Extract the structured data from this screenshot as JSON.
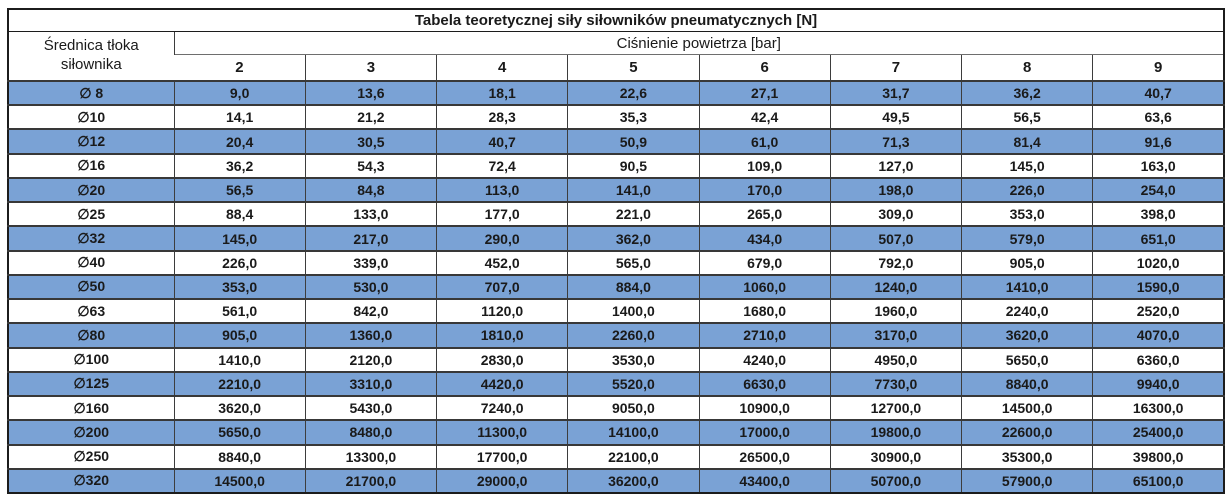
{
  "table": {
    "title": "Tabela teoretycznej siły siłowników pneumatycznych [N]",
    "diameter_header_line1": "Średnica tłoka",
    "diameter_header_line2": "siłownika",
    "pressure_header": "Ciśnienie powietrza [bar]",
    "pressure_columns": [
      "2",
      "3",
      "4",
      "5",
      "6",
      "7",
      "8",
      "9"
    ],
    "rows": [
      {
        "label": "∅ 8",
        "values": [
          "9,0",
          "13,6",
          "18,1",
          "22,6",
          "27,1",
          "31,7",
          "36,2",
          "40,7"
        ]
      },
      {
        "label": "∅10",
        "values": [
          "14,1",
          "21,2",
          "28,3",
          "35,3",
          "42,4",
          "49,5",
          "56,5",
          "63,6"
        ]
      },
      {
        "label": "∅12",
        "values": [
          "20,4",
          "30,5",
          "40,7",
          "50,9",
          "61,0",
          "71,3",
          "81,4",
          "91,6"
        ]
      },
      {
        "label": "∅16",
        "values": [
          "36,2",
          "54,3",
          "72,4",
          "90,5",
          "109,0",
          "127,0",
          "145,0",
          "163,0"
        ]
      },
      {
        "label": "∅20",
        "values": [
          "56,5",
          "84,8",
          "113,0",
          "141,0",
          "170,0",
          "198,0",
          "226,0",
          "254,0"
        ]
      },
      {
        "label": "∅25",
        "values": [
          "88,4",
          "133,0",
          "177,0",
          "221,0",
          "265,0",
          "309,0",
          "353,0",
          "398,0"
        ]
      },
      {
        "label": "∅32",
        "values": [
          "145,0",
          "217,0",
          "290,0",
          "362,0",
          "434,0",
          "507,0",
          "579,0",
          "651,0"
        ]
      },
      {
        "label": "∅40",
        "values": [
          "226,0",
          "339,0",
          "452,0",
          "565,0",
          "679,0",
          "792,0",
          "905,0",
          "1020,0"
        ]
      },
      {
        "label": "∅50",
        "values": [
          "353,0",
          "530,0",
          "707,0",
          "884,0",
          "1060,0",
          "1240,0",
          "1410,0",
          "1590,0"
        ]
      },
      {
        "label": "∅63",
        "values": [
          "561,0",
          "842,0",
          "1120,0",
          "1400,0",
          "1680,0",
          "1960,0",
          "2240,0",
          "2520,0"
        ]
      },
      {
        "label": "∅80",
        "values": [
          "905,0",
          "1360,0",
          "1810,0",
          "2260,0",
          "2710,0",
          "3170,0",
          "3620,0",
          "4070,0"
        ]
      },
      {
        "label": "∅100",
        "values": [
          "1410,0",
          "2120,0",
          "2830,0",
          "3530,0",
          "4240,0",
          "4950,0",
          "5650,0",
          "6360,0"
        ]
      },
      {
        "label": "∅125",
        "values": [
          "2210,0",
          "3310,0",
          "4420,0",
          "5520,0",
          "6630,0",
          "7730,0",
          "8840,0",
          "9940,0"
        ]
      },
      {
        "label": "∅160",
        "values": [
          "3620,0",
          "5430,0",
          "7240,0",
          "9050,0",
          "10900,0",
          "12700,0",
          "14500,0",
          "16300,0"
        ]
      },
      {
        "label": "∅200",
        "values": [
          "5650,0",
          "8480,0",
          "11300,0",
          "14100,0",
          "17000,0",
          "19800,0",
          "22600,0",
          "25400,0"
        ]
      },
      {
        "label": "∅250",
        "values": [
          "8840,0",
          "13300,0",
          "17700,0",
          "22100,0",
          "26500,0",
          "30900,0",
          "35300,0",
          "39800,0"
        ]
      },
      {
        "label": "∅320",
        "values": [
          "14500,0",
          "21700,0",
          "29000,0",
          "36200,0",
          "43400,0",
          "50700,0",
          "57900,0",
          "65100,0"
        ]
      }
    ],
    "colors": {
      "stripe_blue": "#7aa2d5",
      "grid": "#3d3d3d",
      "outer_border": "#1c1c1c",
      "text": "#1a1a1a"
    }
  }
}
